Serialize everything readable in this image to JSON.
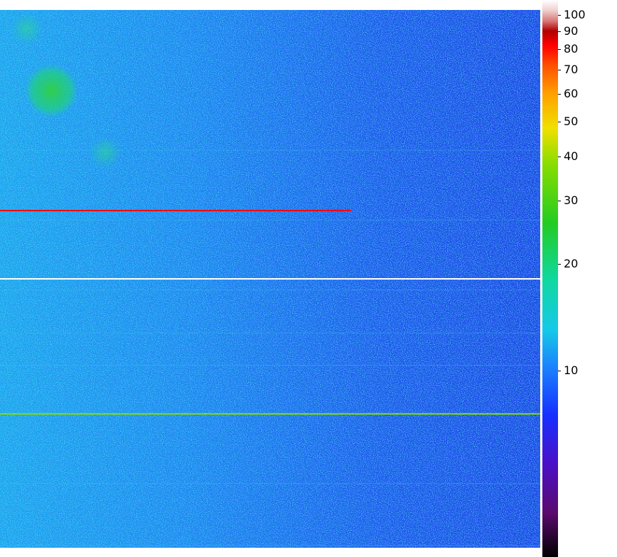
{
  "chart_data": {
    "type": "heatmap",
    "title": "",
    "xlabel": "",
    "ylabel": "",
    "colorbar": {
      "scale": "log",
      "range": [
        3,
        110
      ],
      "ticks": [
        {
          "value": 10,
          "label": "10"
        },
        {
          "value": 20,
          "label": "20"
        },
        {
          "value": 30,
          "label": "30"
        },
        {
          "value": 40,
          "label": "40"
        },
        {
          "value": 50,
          "label": "50"
        },
        {
          "value": 60,
          "label": "60"
        },
        {
          "value": 70,
          "label": "70"
        },
        {
          "value": 80,
          "label": "80"
        },
        {
          "value": 90,
          "label": "90"
        },
        {
          "value": 100,
          "label": "100"
        }
      ],
      "colormap": [
        {
          "value": 3,
          "color": "#000000"
        },
        {
          "value": 4,
          "color": "#5a0a6e"
        },
        {
          "value": 5.5,
          "color": "#4a10c8"
        },
        {
          "value": 7.5,
          "color": "#1630ff"
        },
        {
          "value": 10,
          "color": "#1a7cff"
        },
        {
          "value": 13,
          "color": "#16c8e8"
        },
        {
          "value": 18,
          "color": "#10d8a0"
        },
        {
          "value": 26,
          "color": "#22cc22"
        },
        {
          "value": 38,
          "color": "#88dd00"
        },
        {
          "value": 48,
          "color": "#f0e000"
        },
        {
          "value": 60,
          "color": "#ffa000"
        },
        {
          "value": 72,
          "color": "#ff5000"
        },
        {
          "value": 82,
          "color": "#ff0000"
        },
        {
          "value": 90,
          "color": "#b00000"
        },
        {
          "value": 96,
          "color": "#d87878"
        },
        {
          "value": 103,
          "color": "#f0d0d0"
        },
        {
          "value": 110,
          "color": "#ffffff"
        }
      ]
    },
    "field": {
      "base_value_left": 13,
      "base_value_right": 8,
      "noise": "high"
    },
    "features": [
      {
        "kind": "blob",
        "cx": 0.095,
        "cy": 0.15,
        "r": 0.05,
        "value": 26
      },
      {
        "kind": "blob",
        "cx": 0.05,
        "cy": 0.035,
        "r": 0.03,
        "value": 18
      },
      {
        "kind": "blob",
        "cx": 0.195,
        "cy": 0.265,
        "r": 0.03,
        "value": 20
      },
      {
        "kind": "streak",
        "y": 0.373,
        "x_from": 0.0,
        "x_to": 0.65,
        "value": 80
      },
      {
        "kind": "streak",
        "y": 0.5,
        "x_from": 0.0,
        "x_to": 1.0,
        "value": 110
      },
      {
        "kind": "streak",
        "y": 0.751,
        "x_from": 0.0,
        "x_to": 1.0,
        "value": 28
      }
    ]
  }
}
